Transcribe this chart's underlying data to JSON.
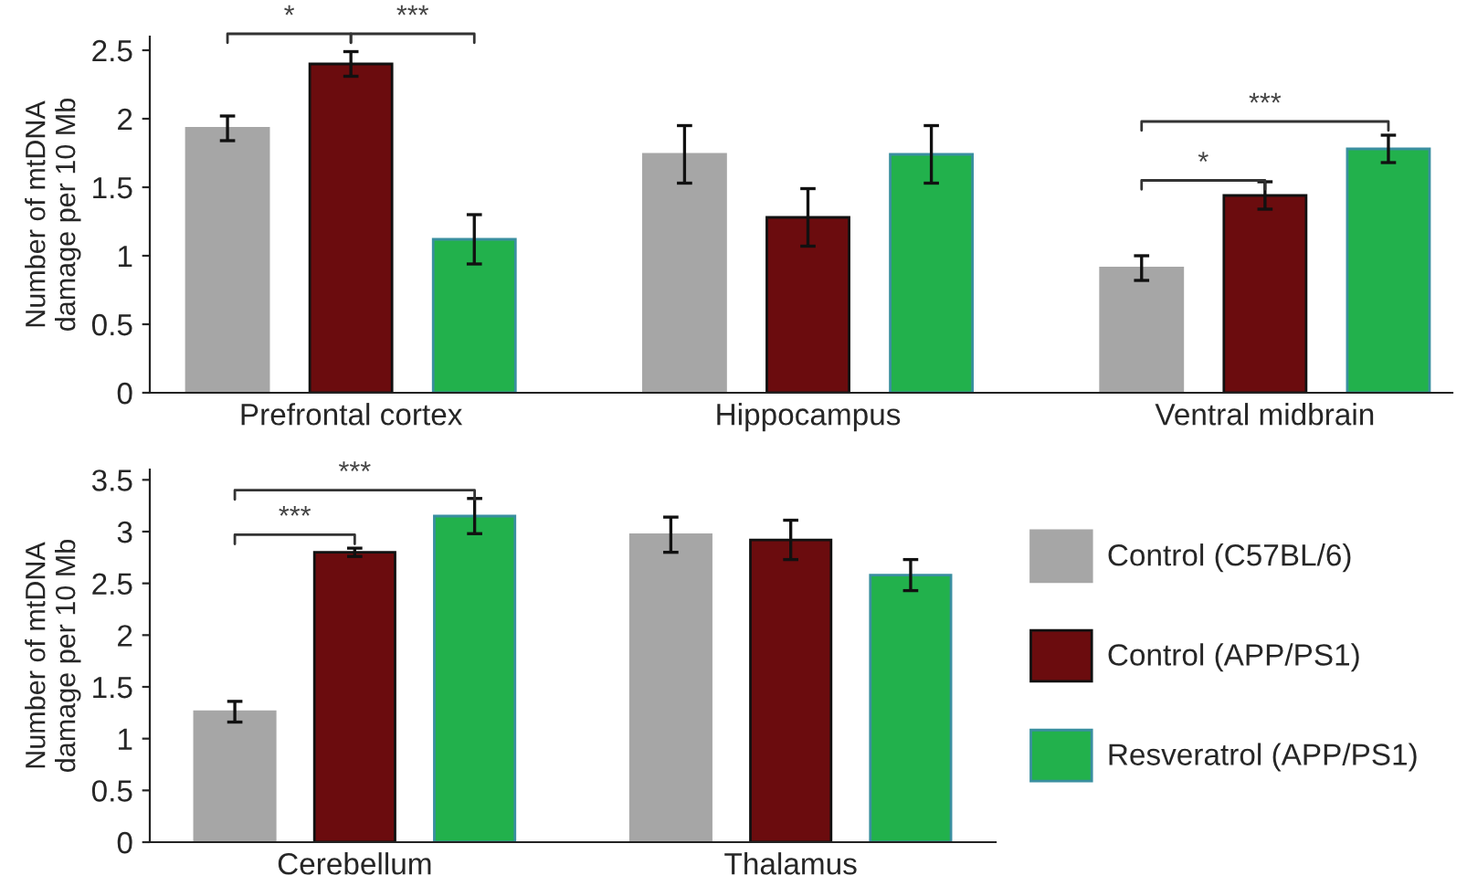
{
  "chart_data": [
    {
      "type": "bar",
      "ylabel": "Number of mtDNA\ndamage per 10 Mb",
      "categories": [
        "Prefrontal cortex",
        "Hippocampus",
        "Ventral midbrain"
      ],
      "ylim": [
        0,
        2.6
      ],
      "yticks": [
        0,
        0.5,
        1,
        {
          "value": 1.5,
          "label": "1.5"
        },
        2,
        {
          "value": 2.5,
          "label": "2.5"
        }
      ],
      "legend": false,
      "grid": false,
      "series": [
        {
          "color": "#a6a6a6",
          "values": [
            1.93,
            1.74,
            0.91
          ],
          "errors": [
            0.09,
            0.21,
            0.09
          ]
        },
        {
          "color": "#6b0c0e",
          "values": [
            2.4,
            1.28,
            1.44
          ],
          "errors": [
            0.09,
            0.21,
            0.1
          ]
        },
        {
          "color": "#22b14c",
          "values": [
            1.12,
            1.74,
            1.78
          ],
          "errors": [
            0.18,
            0.21,
            0.1
          ]
        }
      ],
      "annotations": [
        "*",
        "***",
        "*",
        "***"
      ]
    },
    {
      "type": "bar",
      "ylabel": "Number of mtDNA\ndamage per 10 Mb",
      "categories": [
        "Cerebellum",
        "Thalamus"
      ],
      "ylim": [
        0,
        3.6
      ],
      "yticks": [
        0,
        0.5,
        1,
        1.5,
        2,
        2.5,
        3,
        3.5
      ],
      "legend": "right",
      "grid": false,
      "series": [
        {
          "name": "Control (C57BL/6)",
          "color": "#a6a6a6",
          "values": [
            1.26,
            2.97
          ],
          "errors": [
            0.1,
            0.17
          ]
        },
        {
          "name": "Control (APP/PS1)",
          "color": "#6b0c0e",
          "values": [
            2.8,
            2.92
          ],
          "errors": [
            0.04,
            0.19
          ]
        },
        {
          "name": "Resveratrol (APP/PS1)",
          "color": "#22b14c",
          "values": [
            3.15,
            2.58
          ],
          "errors": [
            0.17,
            0.15
          ]
        }
      ],
      "annotations": [
        "***",
        "***"
      ]
    }
  ]
}
